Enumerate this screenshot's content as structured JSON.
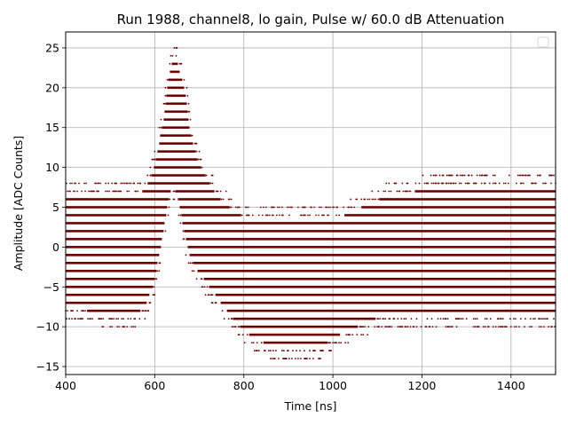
{
  "chart_data": {
    "type": "scatter",
    "title": "Run 1988, channel8, lo gain, Pulse w/ 60.0 dB Attenuation",
    "xlabel": "Time [ns]",
    "ylabel": "Amplitude [ADC Counts]",
    "xlim": [
      400,
      1500
    ],
    "ylim": [
      -16,
      27
    ],
    "xticks": [
      400,
      600,
      800,
      1000,
      1200,
      1400
    ],
    "yticks": [
      -15,
      -10,
      -5,
      0,
      5,
      10,
      15,
      20,
      25
    ],
    "grid": true,
    "legend": "top-right (empty)",
    "colors": {
      "points": "#6b0000"
    },
    "envelope": {
      "x": [
        400,
        480,
        560,
        580,
        600,
        620,
        630,
        640,
        650,
        660,
        670,
        680,
        700,
        740,
        780,
        820,
        860,
        900,
        940,
        980,
        1000,
        1040,
        1080,
        1120,
        1160,
        1200,
        1240,
        1280,
        1320,
        1360,
        1400,
        1440,
        1480,
        1500
      ],
      "upper": [
        7,
        7,
        7,
        8,
        11,
        17,
        22,
        24,
        24,
        22,
        20,
        15,
        11,
        7,
        5,
        4,
        4,
        4,
        4,
        4,
        4,
        5,
        6,
        7,
        7,
        8,
        8,
        8,
        8,
        8,
        8,
        8,
        8,
        8
      ],
      "lower": [
        -8,
        -9,
        -9,
        -8,
        -5,
        1,
        5,
        7,
        6,
        3,
        0,
        -2,
        -4,
        -7,
        -10,
        -12,
        -13,
        -13,
        -13,
        -13,
        -12,
        -11,
        -10,
        -9,
        -9,
        -9,
        -9,
        -9,
        -9,
        -9,
        -9,
        -9,
        -9,
        -9
      ]
    }
  }
}
